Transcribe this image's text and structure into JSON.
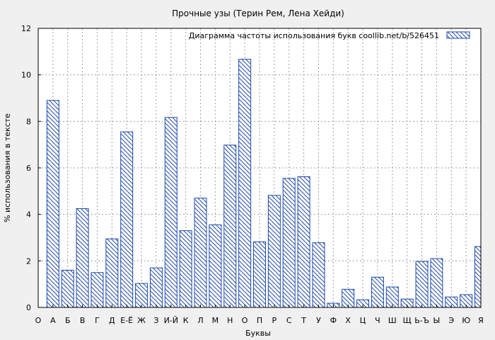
{
  "chart_data": {
    "type": "bar",
    "title": "Прочные узы (Терин Рем, Лена Хейди)",
    "xlabel": "Буквы",
    "ylabel": "% использования в тексте",
    "ylim": [
      0,
      12
    ],
    "yticks": [
      0,
      2,
      4,
      6,
      8,
      10,
      12
    ],
    "grid": true,
    "legend_position": "top-right",
    "categories": [
      "О",
      "А",
      "Б",
      "В",
      "Г",
      "Д",
      "Е-Ё",
      "Ж",
      "З",
      "И-Й",
      "К",
      "Л",
      "М",
      "Н",
      "О",
      "П",
      "Р",
      "С",
      "Т",
      "У",
      "Ф",
      "Х",
      "Ц",
      "Ч",
      "Ш",
      "Щ",
      "Ь-Ъ",
      "Ы",
      "Э",
      "Ю",
      "Я"
    ],
    "series": [
      {
        "name": "Диаграмма частоты использования букв  coollib.net/b/526451",
        "values": [
          null,
          8.9,
          1.6,
          4.25,
          1.5,
          2.95,
          7.55,
          1.03,
          1.7,
          8.17,
          3.3,
          4.7,
          3.55,
          6.98,
          10.67,
          2.82,
          4.82,
          5.55,
          5.62,
          2.78,
          0.18,
          0.78,
          0.33,
          1.3,
          0.88,
          0.36,
          1.98,
          2.1,
          0.45,
          0.55,
          2.62
        ]
      }
    ],
    "colors": {
      "bar_stroke": "#1f4aa8",
      "background": "#f0f0f0",
      "plot_bg": "#ffffff"
    }
  }
}
